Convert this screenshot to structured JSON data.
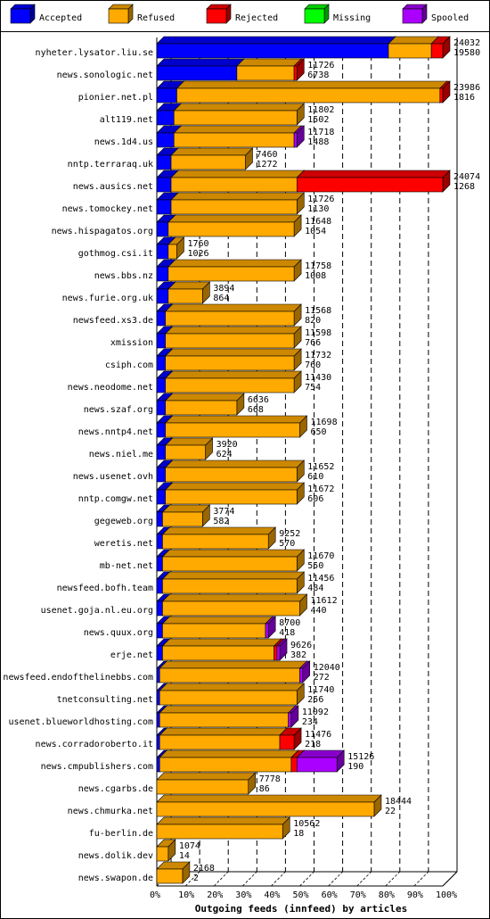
{
  "chart_data": {
    "type": "bar",
    "orientation": "horizontal",
    "stacked": true,
    "xlabel": "Outgoing feeds (innfeed) by articles",
    "x_ticks": [
      "0%",
      "10%",
      "20%",
      "30%",
      "40%",
      "50%",
      "60%",
      "70%",
      "80%",
      "90%",
      "100%"
    ],
    "xlim": [
      0,
      100
    ],
    "grid": true,
    "legend_position": "top",
    "series": [
      {
        "name": "Accepted",
        "color": "#0000ff"
      },
      {
        "name": "Refused",
        "color": "#ffaa00"
      },
      {
        "name": "Rejected",
        "color": "#ff0000"
      },
      {
        "name": "Missing",
        "color": "#00ff00"
      },
      {
        "name": "Spooled",
        "color": "#aa00ff"
      }
    ],
    "rows": [
      {
        "host": "nyheter.lysator.liu.se",
        "total": "24032",
        "accepted": "19580",
        "pct": [
          81,
          15,
          4,
          0,
          0
        ]
      },
      {
        "host": "news.sonologic.net",
        "total": "11726",
        "accepted": "6738",
        "pct": [
          28,
          20,
          1,
          0,
          0
        ]
      },
      {
        "host": "pionier.net.pl",
        "total": "23986",
        "accepted": "1816",
        "pct": [
          7,
          92,
          1,
          0,
          0
        ]
      },
      {
        "host": "alt119.net",
        "total": "11802",
        "accepted": "1502",
        "pct": [
          6,
          43,
          0,
          0,
          0
        ]
      },
      {
        "host": "news.1d4.us",
        "total": "11718",
        "accepted": "1488",
        "pct": [
          6,
          42,
          0,
          0,
          1
        ]
      },
      {
        "host": "nntp.terraraq.uk",
        "total": "7460",
        "accepted": "1272",
        "pct": [
          5,
          26,
          0,
          0,
          0
        ]
      },
      {
        "host": "news.ausics.net",
        "total": "24074",
        "accepted": "1268",
        "pct": [
          5,
          44,
          51,
          0,
          0
        ]
      },
      {
        "host": "news.tomockey.net",
        "total": "11726",
        "accepted": "1130",
        "pct": [
          5,
          44,
          0,
          0,
          0
        ]
      },
      {
        "host": "news.hispagatos.org",
        "total": "11648",
        "accepted": "1054",
        "pct": [
          4,
          44,
          0,
          0,
          0
        ]
      },
      {
        "host": "gothmog.csi.it",
        "total": "1760",
        "accepted": "1026",
        "pct": [
          4,
          3,
          0,
          0,
          0
        ]
      },
      {
        "host": "news.bbs.nz",
        "total": "11758",
        "accepted": "1008",
        "pct": [
          4,
          44,
          0,
          0,
          0
        ]
      },
      {
        "host": "news.furie.org.uk",
        "total": "3894",
        "accepted": "864",
        "pct": [
          4,
          12,
          0,
          0,
          0
        ]
      },
      {
        "host": "newsfeed.xs3.de",
        "total": "11568",
        "accepted": "820",
        "pct": [
          3,
          45,
          0,
          0,
          0
        ]
      },
      {
        "host": "xmission",
        "total": "11598",
        "accepted": "766",
        "pct": [
          3,
          45,
          0,
          0,
          0
        ]
      },
      {
        "host": "csiph.com",
        "total": "11732",
        "accepted": "760",
        "pct": [
          3,
          45,
          0,
          0,
          0
        ]
      },
      {
        "host": "news.neodome.net",
        "total": "11430",
        "accepted": "754",
        "pct": [
          3,
          45,
          0,
          0,
          0
        ]
      },
      {
        "host": "news.szaf.org",
        "total": "6636",
        "accepted": "668",
        "pct": [
          3,
          25,
          0,
          0,
          0
        ]
      },
      {
        "host": "news.nntp4.net",
        "total": "11698",
        "accepted": "650",
        "pct": [
          3,
          47,
          0,
          0,
          0
        ]
      },
      {
        "host": "news.niel.me",
        "total": "3920",
        "accepted": "624",
        "pct": [
          3,
          14,
          0,
          0,
          0
        ]
      },
      {
        "host": "news.usenet.ovh",
        "total": "11652",
        "accepted": "610",
        "pct": [
          3,
          46,
          0,
          0,
          0
        ]
      },
      {
        "host": "nntp.comgw.net",
        "total": "11672",
        "accepted": "606",
        "pct": [
          3,
          46,
          0,
          0,
          0
        ]
      },
      {
        "host": "gegeweb.org",
        "total": "3774",
        "accepted": "582",
        "pct": [
          2,
          14,
          0,
          0,
          0
        ]
      },
      {
        "host": "weretis.net",
        "total": "9252",
        "accepted": "570",
        "pct": [
          2,
          37,
          0,
          0,
          0
        ]
      },
      {
        "host": "mb-net.net",
        "total": "11670",
        "accepted": "550",
        "pct": [
          2,
          47,
          0,
          0,
          0
        ]
      },
      {
        "host": "newsfeed.bofh.team",
        "total": "11456",
        "accepted": "484",
        "pct": [
          2,
          47,
          0,
          0,
          0
        ]
      },
      {
        "host": "usenet.goja.nl.eu.org",
        "total": "11612",
        "accepted": "440",
        "pct": [
          2,
          48,
          0,
          0,
          0
        ]
      },
      {
        "host": "news.quux.org",
        "total": "8700",
        "accepted": "418",
        "pct": [
          2,
          36,
          0,
          0,
          1
        ]
      },
      {
        "host": "erje.net",
        "total": "9626",
        "accepted": "382",
        "pct": [
          2,
          39,
          1,
          0,
          1
        ]
      },
      {
        "host": "newsfeed.endofthelinebbs.com",
        "total": "12040",
        "accepted": "272",
        "pct": [
          1,
          49,
          0,
          0,
          1
        ]
      },
      {
        "host": "tnetconsulting.net",
        "total": "11740",
        "accepted": "256",
        "pct": [
          1,
          48,
          0,
          0,
          0
        ]
      },
      {
        "host": "usenet.blueworldhosting.com",
        "total": "11092",
        "accepted": "234",
        "pct": [
          1,
          45,
          0,
          0,
          1
        ]
      },
      {
        "host": "news.corradoroberto.it",
        "total": "11476",
        "accepted": "218",
        "pct": [
          1,
          42,
          5,
          0,
          0
        ]
      },
      {
        "host": "news.cmpublishers.com",
        "total": "15126",
        "accepted": "190",
        "pct": [
          1,
          46,
          2,
          0,
          14
        ]
      },
      {
        "host": "news.cgarbs.de",
        "total": "7778",
        "accepted": "86",
        "pct": [
          0,
          32,
          0,
          0,
          0
        ]
      },
      {
        "host": "news.chmurka.net",
        "total": "18444",
        "accepted": "22",
        "pct": [
          0,
          76,
          0,
          0,
          0
        ]
      },
      {
        "host": "fu-berlin.de",
        "total": "10562",
        "accepted": "18",
        "pct": [
          0,
          44,
          0,
          0,
          0
        ]
      },
      {
        "host": "news.dolik.dev",
        "total": "1074",
        "accepted": "14",
        "pct": [
          0,
          4,
          0,
          0,
          0
        ]
      },
      {
        "host": "news.swapon.de",
        "total": "2168",
        "accepted": "2",
        "pct": [
          0,
          9,
          0,
          0,
          0
        ]
      }
    ]
  }
}
